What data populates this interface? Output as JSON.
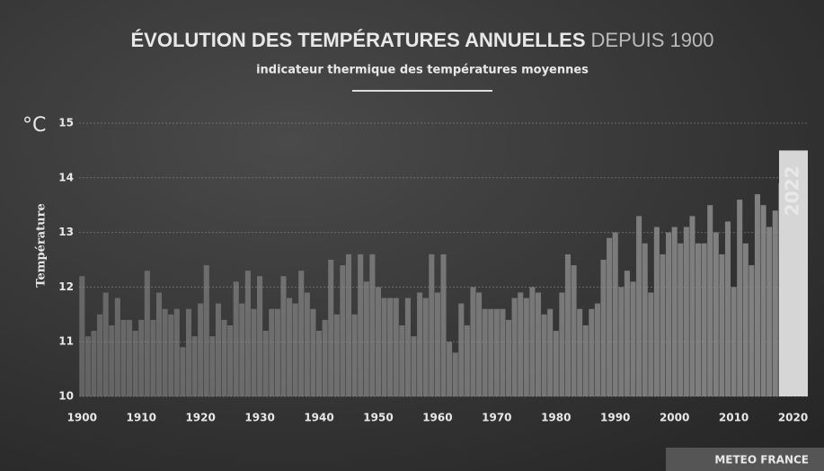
{
  "chart_data": {
    "type": "bar",
    "title": "ÉVOLUTION DES TEMPÉRATURES ANNUELLES",
    "title_suffix": "DEPUIS 1900",
    "subtitle": "indicateur thermique des températures moyennes",
    "y_unit": "°C",
    "ylabel": "Température",
    "source": "METEO FRANCE",
    "x": [
      1900,
      1901,
      1902,
      1903,
      1904,
      1905,
      1906,
      1907,
      1908,
      1909,
      1910,
      1911,
      1912,
      1913,
      1914,
      1915,
      1916,
      1917,
      1918,
      1919,
      1920,
      1921,
      1922,
      1923,
      1924,
      1925,
      1926,
      1927,
      1928,
      1929,
      1930,
      1931,
      1932,
      1933,
      1934,
      1935,
      1936,
      1937,
      1938,
      1939,
      1940,
      1941,
      1942,
      1943,
      1944,
      1945,
      1946,
      1947,
      1948,
      1949,
      1950,
      1951,
      1952,
      1953,
      1954,
      1955,
      1956,
      1957,
      1958,
      1959,
      1960,
      1961,
      1962,
      1963,
      1964,
      1965,
      1966,
      1967,
      1968,
      1969,
      1970,
      1971,
      1972,
      1973,
      1974,
      1975,
      1976,
      1977,
      1978,
      1979,
      1980,
      1981,
      1982,
      1983,
      1984,
      1985,
      1986,
      1987,
      1988,
      1989,
      1990,
      1991,
      1992,
      1993,
      1994,
      1995,
      1996,
      1997,
      1998,
      1999,
      2000,
      2001,
      2002,
      2003,
      2004,
      2005,
      2006,
      2007,
      2008,
      2009,
      2010,
      2011,
      2012,
      2013,
      2014,
      2015,
      2016,
      2017,
      2018,
      2019,
      2020,
      2021,
      2022
    ],
    "values": [
      12.2,
      11.1,
      11.2,
      11.5,
      11.9,
      11.3,
      11.8,
      11.4,
      11.4,
      11.2,
      11.4,
      12.3,
      11.4,
      11.9,
      11.6,
      11.5,
      11.6,
      10.9,
      11.6,
      11.1,
      11.7,
      12.4,
      11.1,
      11.7,
      11.4,
      11.3,
      12.1,
      11.7,
      12.3,
      11.6,
      12.2,
      11.2,
      11.6,
      11.6,
      12.2,
      11.8,
      11.7,
      12.3,
      11.9,
      11.6,
      11.2,
      11.4,
      12.5,
      11.5,
      12.4,
      12.6,
      11.5,
      12.6,
      12.1,
      12.6,
      12.0,
      11.8,
      11.8,
      11.8,
      11.3,
      11.8,
      11.1,
      11.9,
      11.8,
      12.6,
      11.9,
      12.6,
      11.0,
      10.8,
      11.7,
      11.3,
      12.0,
      11.9,
      11.6,
      11.6,
      11.6,
      11.6,
      11.4,
      11.8,
      11.9,
      11.8,
      12.0,
      11.9,
      11.5,
      11.6,
      11.2,
      11.9,
      12.6,
      12.4,
      11.6,
      11.3,
      11.6,
      11.7,
      12.5,
      12.9,
      13.0,
      12.0,
      12.3,
      12.1,
      13.3,
      12.8,
      11.9,
      13.1,
      12.6,
      13.0,
      13.1,
      12.8,
      13.1,
      13.3,
      12.8,
      12.8,
      13.5,
      13.0,
      12.6,
      13.2,
      12.0,
      13.6,
      12.8,
      12.4,
      13.7,
      13.5,
      13.1,
      13.4,
      13.9,
      13.7,
      14.1,
      12.9,
      14.5
    ],
    "color": "#8c8c8c",
    "highlight_color": "#d6d6d6",
    "xlim": [
      1899.5,
      2022.5
    ],
    "xticks": [
      1900,
      1910,
      1920,
      1930,
      1940,
      1950,
      1960,
      1970,
      1980,
      1990,
      2000,
      2010,
      2020
    ],
    "ylim": [
      10,
      15
    ],
    "yticks": [
      10,
      11,
      12,
      13,
      14,
      15
    ],
    "grid": true
  }
}
